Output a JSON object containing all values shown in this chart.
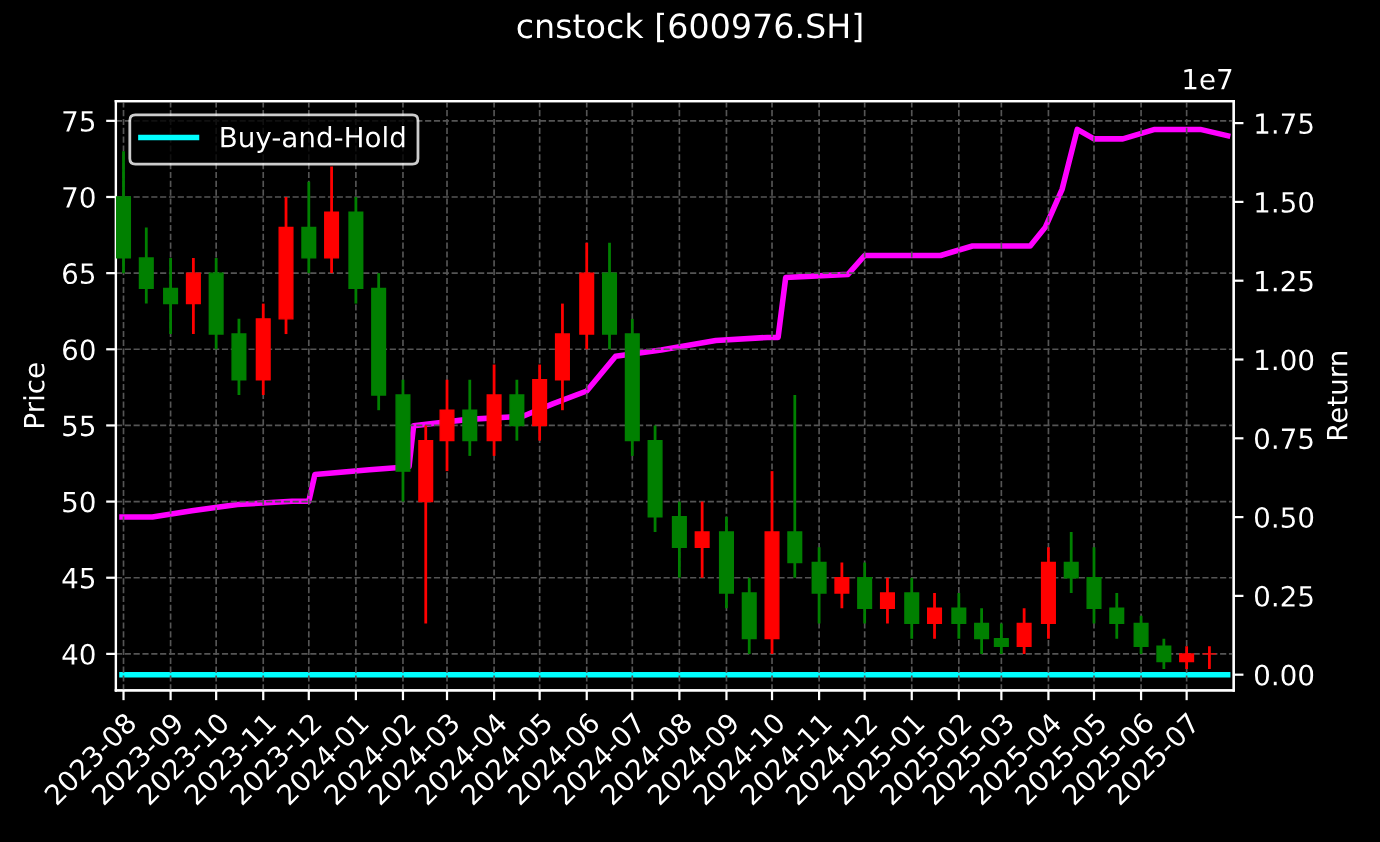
{
  "chart_data": {
    "type": "candlestick",
    "title": "cnstock [600976.SH]",
    "ylabel": "Price",
    "y2label": "Return",
    "annotations": [
      "1e7"
    ],
    "x": [
      "2023-08-01",
      "2023-08-16",
      "2023-09-01",
      "2023-09-16",
      "2023-10-01",
      "2023-10-16",
      "2023-11-01",
      "2023-11-16",
      "2023-12-01",
      "2023-12-16",
      "2024-01-01",
      "2024-01-16",
      "2024-02-01",
      "2024-02-16",
      "2024-03-01",
      "2024-03-16",
      "2024-04-01",
      "2024-04-16",
      "2024-05-01",
      "2024-05-16",
      "2024-06-01",
      "2024-06-16",
      "2024-07-01",
      "2024-07-16",
      "2024-08-01",
      "2024-08-16",
      "2024-09-01",
      "2024-09-16",
      "2024-10-01",
      "2024-10-16",
      "2024-11-01",
      "2024-11-16",
      "2024-12-01",
      "2024-12-16",
      "2025-01-01",
      "2025-01-16",
      "2025-02-01",
      "2025-02-16",
      "2025-03-01",
      "2025-03-16",
      "2025-04-01",
      "2025-04-16",
      "2025-05-01",
      "2025-05-16",
      "2025-06-01",
      "2025-06-16",
      "2025-07-01",
      "2025-07-16"
    ],
    "ohlc": [
      [
        70,
        73,
        65,
        66
      ],
      [
        66,
        68,
        63,
        64
      ],
      [
        64,
        66,
        61,
        63
      ],
      [
        63,
        66,
        61,
        65
      ],
      [
        65,
        66,
        60,
        61
      ],
      [
        61,
        62,
        57,
        58
      ],
      [
        58,
        63,
        57,
        62
      ],
      [
        62,
        70,
        61,
        68
      ],
      [
        68,
        71,
        65,
        66
      ],
      [
        66,
        72,
        65,
        69
      ],
      [
        69,
        70,
        63,
        64
      ],
      [
        64,
        65,
        56,
        57
      ],
      [
        57,
        58,
        50,
        52
      ],
      [
        50,
        55,
        42,
        54
      ],
      [
        54,
        58,
        52,
        56
      ],
      [
        56,
        58,
        53,
        54
      ],
      [
        54,
        59,
        53,
        57
      ],
      [
        57,
        58,
        54,
        55
      ],
      [
        55,
        59,
        54,
        58
      ],
      [
        58,
        63,
        56,
        61
      ],
      [
        61,
        67,
        60,
        65
      ],
      [
        65,
        67,
        60,
        61
      ],
      [
        61,
        62,
        53,
        54
      ],
      [
        54,
        55,
        48,
        49
      ],
      [
        49,
        50,
        45,
        47
      ],
      [
        47,
        50,
        45,
        48
      ],
      [
        48,
        49,
        43,
        44
      ],
      [
        44,
        45,
        40,
        41
      ],
      [
        41,
        52,
        40,
        48
      ],
      [
        48,
        57,
        45,
        46
      ],
      [
        46,
        47,
        42,
        44
      ],
      [
        44,
        46,
        43,
        45
      ],
      [
        45,
        46,
        42,
        43
      ],
      [
        43,
        45,
        42,
        44
      ],
      [
        44,
        45,
        41,
        42
      ],
      [
        42,
        44,
        41,
        43
      ],
      [
        43,
        44,
        41,
        42
      ],
      [
        42,
        43,
        40,
        41
      ],
      [
        41,
        42,
        40,
        40.5
      ],
      [
        40.5,
        43,
        40,
        42
      ],
      [
        42,
        47,
        41,
        46
      ],
      [
        46,
        48,
        44,
        45
      ],
      [
        45,
        47,
        42,
        43
      ],
      [
        43,
        44,
        41,
        42
      ],
      [
        42,
        42.5,
        40,
        40.5
      ],
      [
        40.5,
        41,
        39,
        39.5
      ],
      [
        39.5,
        40.5,
        39,
        40
      ],
      [
        40,
        40.5,
        39,
        40
      ]
    ],
    "colors": [
      "#008000",
      "#008000",
      "#008000",
      "#ff0000",
      "#008000",
      "#008000",
      "#ff0000",
      "#ff0000",
      "#008000",
      "#ff0000",
      "#008000",
      "#008000",
      "#008000",
      "#ff0000",
      "#ff0000",
      "#008000",
      "#ff0000",
      "#008000",
      "#ff0000",
      "#ff0000",
      "#ff0000",
      "#008000",
      "#008000",
      "#008000",
      "#008000",
      "#ff0000",
      "#008000",
      "#008000",
      "#ff0000",
      "#008000",
      "#008000",
      "#ff0000",
      "#008000",
      "#ff0000",
      "#008000",
      "#ff0000",
      "#008000",
      "#008000",
      "#008000",
      "#ff0000",
      "#ff0000",
      "#008000",
      "#008000",
      "#008000",
      "#008000",
      "#008000",
      "#ff0000",
      "#ff0000"
    ],
    "series": [
      {
        "type": "line",
        "axis": "y2",
        "color": "#ff00ff",
        "x": [
          "2023-07-31",
          "2023-08-20",
          "2023-09-15",
          "2023-10-15",
          "2023-11-20",
          "2023-12-01",
          "2023-12-05",
          "2024-01-10",
          "2024-02-05",
          "2024-02-08",
          "2024-03-15",
          "2024-04-20",
          "2024-05-10",
          "2024-06-01",
          "2024-06-20",
          "2024-07-20",
          "2024-08-25",
          "2024-09-28",
          "2024-10-05",
          "2024-10-10",
          "2024-11-20",
          "2024-12-01",
          "2025-01-20",
          "2025-02-10",
          "2025-03-20",
          "2025-03-30",
          "2025-04-10",
          "2025-04-20",
          "2025-05-01",
          "2025-05-20",
          "2025-06-10",
          "2025-07-10",
          "2025-07-28"
        ],
        "values": [
          0.5,
          0.5,
          0.52,
          0.54,
          0.55,
          0.55,
          0.635,
          0.65,
          0.66,
          0.79,
          0.81,
          0.82,
          0.86,
          0.9,
          1.01,
          1.03,
          1.06,
          1.07,
          1.07,
          1.26,
          1.27,
          1.33,
          1.33,
          1.36,
          1.36,
          1.42,
          1.54,
          1.73,
          1.7,
          1.7,
          1.73,
          1.73,
          1.71
        ]
      },
      {
        "type": "line",
        "axis": "y2",
        "name": "Buy-and-Hold",
        "color": "#00ffff",
        "x": [
          "2023-07-31",
          "2025-07-28"
        ],
        "values": [
          0,
          0
        ]
      }
    ],
    "xlim": [
      "2023-07-27",
      "2025-08-01"
    ],
    "xticks": [
      "2023-08",
      "2023-09",
      "2023-10",
      "2023-11",
      "2023-12",
      "2024-01",
      "2024-02",
      "2024-03",
      "2024-04",
      "2024-05",
      "2024-06",
      "2024-07",
      "2024-08",
      "2024-09",
      "2024-10",
      "2024-11",
      "2024-12",
      "2025-01",
      "2025-02",
      "2025-03",
      "2025-04",
      "2025-05",
      "2025-06",
      "2025-07"
    ],
    "ylim": [
      37.6,
      76.3
    ],
    "yticks": [
      40,
      45,
      50,
      55,
      60,
      65,
      70,
      75
    ],
    "y2lim": [
      -0.05,
      1.82
    ],
    "y2ticks": [
      {
        "value": 0,
        "label": "0.00"
      },
      {
        "value": 0.25,
        "label": "0.25"
      },
      {
        "value": 0.5,
        "label": "0.50"
      },
      {
        "value": 0.75,
        "label": "0.75"
      },
      {
        "value": 1,
        "label": "1.00"
      },
      {
        "value": 1.25,
        "label": "1.25"
      },
      {
        "value": 1.5,
        "label": "1.50"
      },
      {
        "value": 1.75,
        "label": "1.75"
      }
    ],
    "grid": true,
    "legend": "top left",
    "line_style": "solid",
    "marker": "none"
  }
}
